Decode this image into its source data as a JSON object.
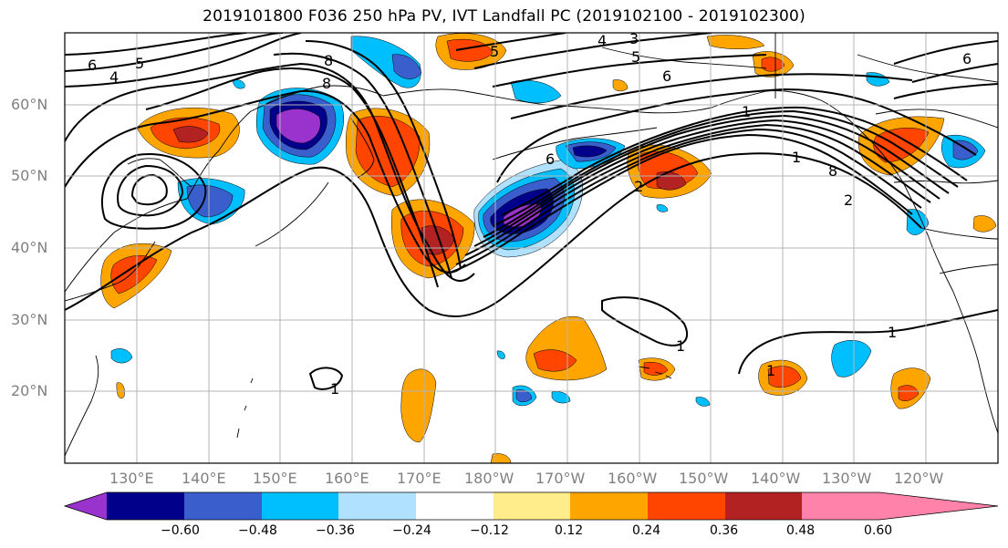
{
  "title": "2019101800 F036 250 hPa PV, IVT Landfall PC (2019102100 - 2019102300)",
  "lat_labels": [
    "60°N",
    "50°N",
    "40°N",
    "30°N",
    "20°N"
  ],
  "lon_labels": [
    "130°E",
    "140°E",
    "150°E",
    "160°E",
    "170°E",
    "180°W",
    "170°W",
    "160°W",
    "150°W",
    "140°W",
    "130°W",
    "120°W"
  ],
  "contour_labels": [
    "6",
    "4",
    "5",
    "8",
    "8",
    "4",
    "3",
    "5",
    "6",
    "5",
    "6",
    "1",
    "6",
    "2",
    "1",
    "8",
    "2",
    "1",
    "1",
    "1",
    "1"
  ],
  "colorbar": {
    "tick_labels": [
      "−0.60",
      "−0.48",
      "−0.36",
      "−0.24",
      "−0.12",
      "0.12",
      "0.24",
      "0.36",
      "0.48",
      "0.60"
    ],
    "colors": [
      "#9a32cd",
      "#00008b",
      "#3a5fcd",
      "#00bfff",
      "#b0e2ff",
      "#ffffff",
      "#ffec8b",
      "#ffa500",
      "#ff4500",
      "#b22222",
      "#ff82ab"
    ]
  }
}
